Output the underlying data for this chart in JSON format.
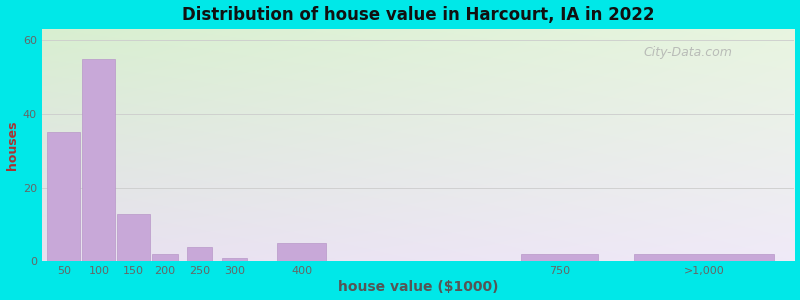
{
  "title": "Distribution of house value in Harcourt, IA in 2022",
  "xlabel": "house value ($1000)",
  "ylabel": "houses",
  "bar_color": "#c8a8d8",
  "bar_edge_color": "#b898c8",
  "background_outer": "#00e8e8",
  "yticks": [
    0,
    20,
    40,
    60
  ],
  "ylim": [
    0,
    63
  ],
  "grid_color": "#cccccc",
  "watermark": "City-Data.com",
  "values": [
    35,
    55,
    13,
    2,
    4,
    1,
    5,
    2,
    2
  ],
  "bar_left": [
    28,
    78,
    128,
    178,
    228,
    278,
    358,
    708,
    870
  ],
  "bar_widths": [
    47,
    47,
    47,
    37,
    37,
    37,
    70,
    110,
    200
  ],
  "xtick_labels": [
    "50",
    "100",
    "150",
    "200",
    "250",
    "300",
    "400",
    "750",
    ">1,000"
  ],
  "xtick_positions": [
    52,
    102,
    152,
    197,
    247,
    297,
    393,
    763,
    970
  ],
  "xlim": [
    20,
    1100
  ]
}
